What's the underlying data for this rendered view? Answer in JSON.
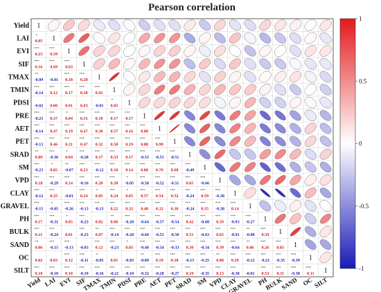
{
  "chart_data": {
    "type": "heatmap",
    "title": "Pearson correlation",
    "variables": [
      "Yield",
      "LAI",
      "EVI",
      "SIF",
      "TMAX",
      "TMIN",
      "PDSI",
      "PRE",
      "AET",
      "PET",
      "SRAD",
      "SM",
      "VPD",
      "CLAY",
      "GRAVEL",
      "PH",
      "BULK",
      "SAND",
      "OC",
      "SILT"
    ],
    "matrix": [
      [
        1,
        0.05,
        0.23,
        0.16,
        -0.09,
        -0.14,
        -0.02,
        -0.21,
        -0.14,
        -0.13,
        0.09,
        -0.23,
        0.18,
        -0.12,
        -0.15,
        0.17,
        0.11,
        0.06,
        0.02,
        0.1
      ],
      [
        0.05,
        1,
        0.59,
        0.69,
        -0.01,
        0.12,
        0.0,
        0.37,
        0.47,
        0.46,
        -0.36,
        0.05,
        -0.29,
        0.25,
        -0.05,
        -0.31,
        -0.24,
        -0.15,
        0.03,
        -0.1
      ],
      [
        0.23,
        0.59,
        1,
        0.63,
        0.18,
        0.17,
        0.01,
        0.04,
        0.19,
        0.21,
        0.04,
        -0.07,
        0.14,
        -0.01,
        -0.26,
        0.05,
        0.01,
        -0.13,
        0.12,
        0.1
      ],
      [
        0.16,
        0.69,
        0.63,
        1,
        0.2,
        0.3,
        0.03,
        0.31,
        0.47,
        0.47,
        -0.28,
        0.23,
        -0.16,
        0.24,
        -0.13,
        -0.23,
        -0.23,
        -0.03,
        -0.11,
        -0.1
      ],
      [
        -0.09,
        -0.01,
        0.18,
        0.2,
        1,
        0.92,
        -0.01,
        0.1,
        0.3,
        0.32,
        0.17,
        -0.12,
        0.2,
        0.05,
        -0.13,
        0.02,
        0.07,
        0.12,
        -0.05,
        -0.16
      ],
      [
        -0.14,
        0.12,
        0.17,
        0.3,
        0.92,
        1,
        0.05,
        0.17,
        0.57,
        0.58,
        0.33,
        0.18,
        0.3,
        0.24,
        0.22,
        0.06,
        -0.14,
        -0.23,
        0.01,
        -0.21
      ],
      [
        -0.02,
        0.0,
        0.01,
        0.03,
        -0.01,
        0.05,
        1,
        0.17,
        0.16,
        0.19,
        0.17,
        0.14,
        -0.05,
        0.05,
        0.32,
        -0.2,
        -0.2,
        0.05,
        -0.03,
        -0.1
      ],
      [
        -0.21,
        0.37,
        0.04,
        0.31,
        0.1,
        0.17,
        0.17,
        1,
        0.88,
        0.88,
        -0.53,
        0.8,
        -0.58,
        0.57,
        0.4,
        -0.64,
        -0.6,
        -0.4,
        -0.09,
        -0.32
      ],
      [
        -0.14,
        0.47,
        0.19,
        0.47,
        0.3,
        0.57,
        0.16,
        0.88,
        1,
        0.99,
        -0.51,
        0.7,
        -0.52,
        0.54,
        0.32,
        -0.57,
        -0.51,
        -0.34,
        0.19,
        -0.28
      ],
      [
        -0.13,
        0.46,
        0.21,
        0.47,
        0.32,
        0.58,
        0.19,
        0.88,
        0.99,
        1,
        -0.51,
        0.68,
        -0.51,
        0.52,
        0.3,
        -0.54,
        -0.5,
        -0.33,
        0.18,
        -0.27
      ],
      [
        0.09,
        -0.36,
        0.04,
        -0.28,
        0.17,
        0.33,
        0.17,
        -0.53,
        -0.51,
        -0.51,
        1,
        -0.49,
        0.65,
        -0.24,
        -0.24,
        0.42,
        0.51,
        0.3,
        -0.15,
        0.19
      ],
      [
        -0.23,
        0.05,
        -0.07,
        0.23,
        -0.12,
        0.18,
        0.14,
        0.8,
        0.7,
        0.68,
        -0.49,
        1,
        -0.66,
        0.59,
        0.55,
        -0.68,
        -0.63,
        -0.34,
        -0.25,
        -0.35
      ],
      [
        0.18,
        -0.29,
        0.14,
        -0.16,
        0.2,
        0.3,
        -0.05,
        -0.58,
        -0.52,
        -0.51,
        0.65,
        -0.66,
        1,
        -0.38,
        -0.38,
        0.59,
        0.65,
        0.39,
        0.08,
        0.13
      ],
      [
        -0.12,
        0.25,
        -0.01,
        0.24,
        0.05,
        0.24,
        0.05,
        0.57,
        0.54,
        0.52,
        -0.24,
        0.59,
        -0.38,
        1,
        0.14,
        -0.93,
        -0.91,
        -0.64,
        0.29,
        -0.38
      ],
      [
        -0.15,
        -0.05,
        -0.26,
        -0.13,
        -0.13,
        0.22,
        0.32,
        0.4,
        0.32,
        0.3,
        -0.24,
        0.55,
        -0.38,
        0.14,
        1,
        -0.27,
        -0.08,
        0.06,
        -0.12,
        -0.01
      ],
      [
        0.17,
        -0.31,
        0.05,
        -0.23,
        0.02,
        0.06,
        -0.2,
        -0.64,
        -0.57,
        -0.54,
        0.42,
        -0.68,
        0.59,
        -0.93,
        -0.27,
        1,
        0.59,
        0.26,
        -0.21,
        0.53
      ],
      [
        0.11,
        -0.24,
        0.01,
        -0.23,
        0.07,
        -0.14,
        -0.2,
        -0.6,
        -0.51,
        -0.5,
        0.51,
        -0.63,
        0.65,
        -0.91,
        -0.08,
        0.59,
        1,
        0.85,
        -0.35,
        0.11
      ],
      [
        0.06,
        -0.15,
        -0.13,
        -0.03,
        0.12,
        -0.23,
        0.05,
        -0.4,
        -0.34,
        -0.33,
        0.3,
        -0.34,
        0.39,
        -0.64,
        0.06,
        0.26,
        0.85,
        1,
        -0.39,
        -0.38
      ],
      [
        0.02,
        0.03,
        0.12,
        -0.11,
        -0.05,
        0.01,
        -0.03,
        -0.09,
        0.19,
        0.18,
        -0.15,
        -0.25,
        0.08,
        0.29,
        -0.12,
        -0.21,
        -0.35,
        -0.39,
        1,
        0.11
      ],
      [
        0.1,
        -0.1,
        0.1,
        -0.1,
        -0.16,
        -0.21,
        -0.1,
        -0.32,
        -0.28,
        -0.27,
        0.19,
        -0.35,
        0.13,
        -0.38,
        -0.01,
        0.53,
        0.11,
        -0.38,
        0.11,
        1
      ]
    ],
    "colorbar": {
      "min": -1,
      "max": 1,
      "ticks": [
        1,
        0.5,
        0,
        -0.5,
        -1
      ]
    },
    "colors": {
      "positive": "#e31a1c",
      "negative": "#1a1ab8",
      "neutral": "#ffffff"
    },
    "lower_triangle": "coefficients with significance stars",
    "upper_triangle": "ellipses",
    "diagonal": "1"
  }
}
